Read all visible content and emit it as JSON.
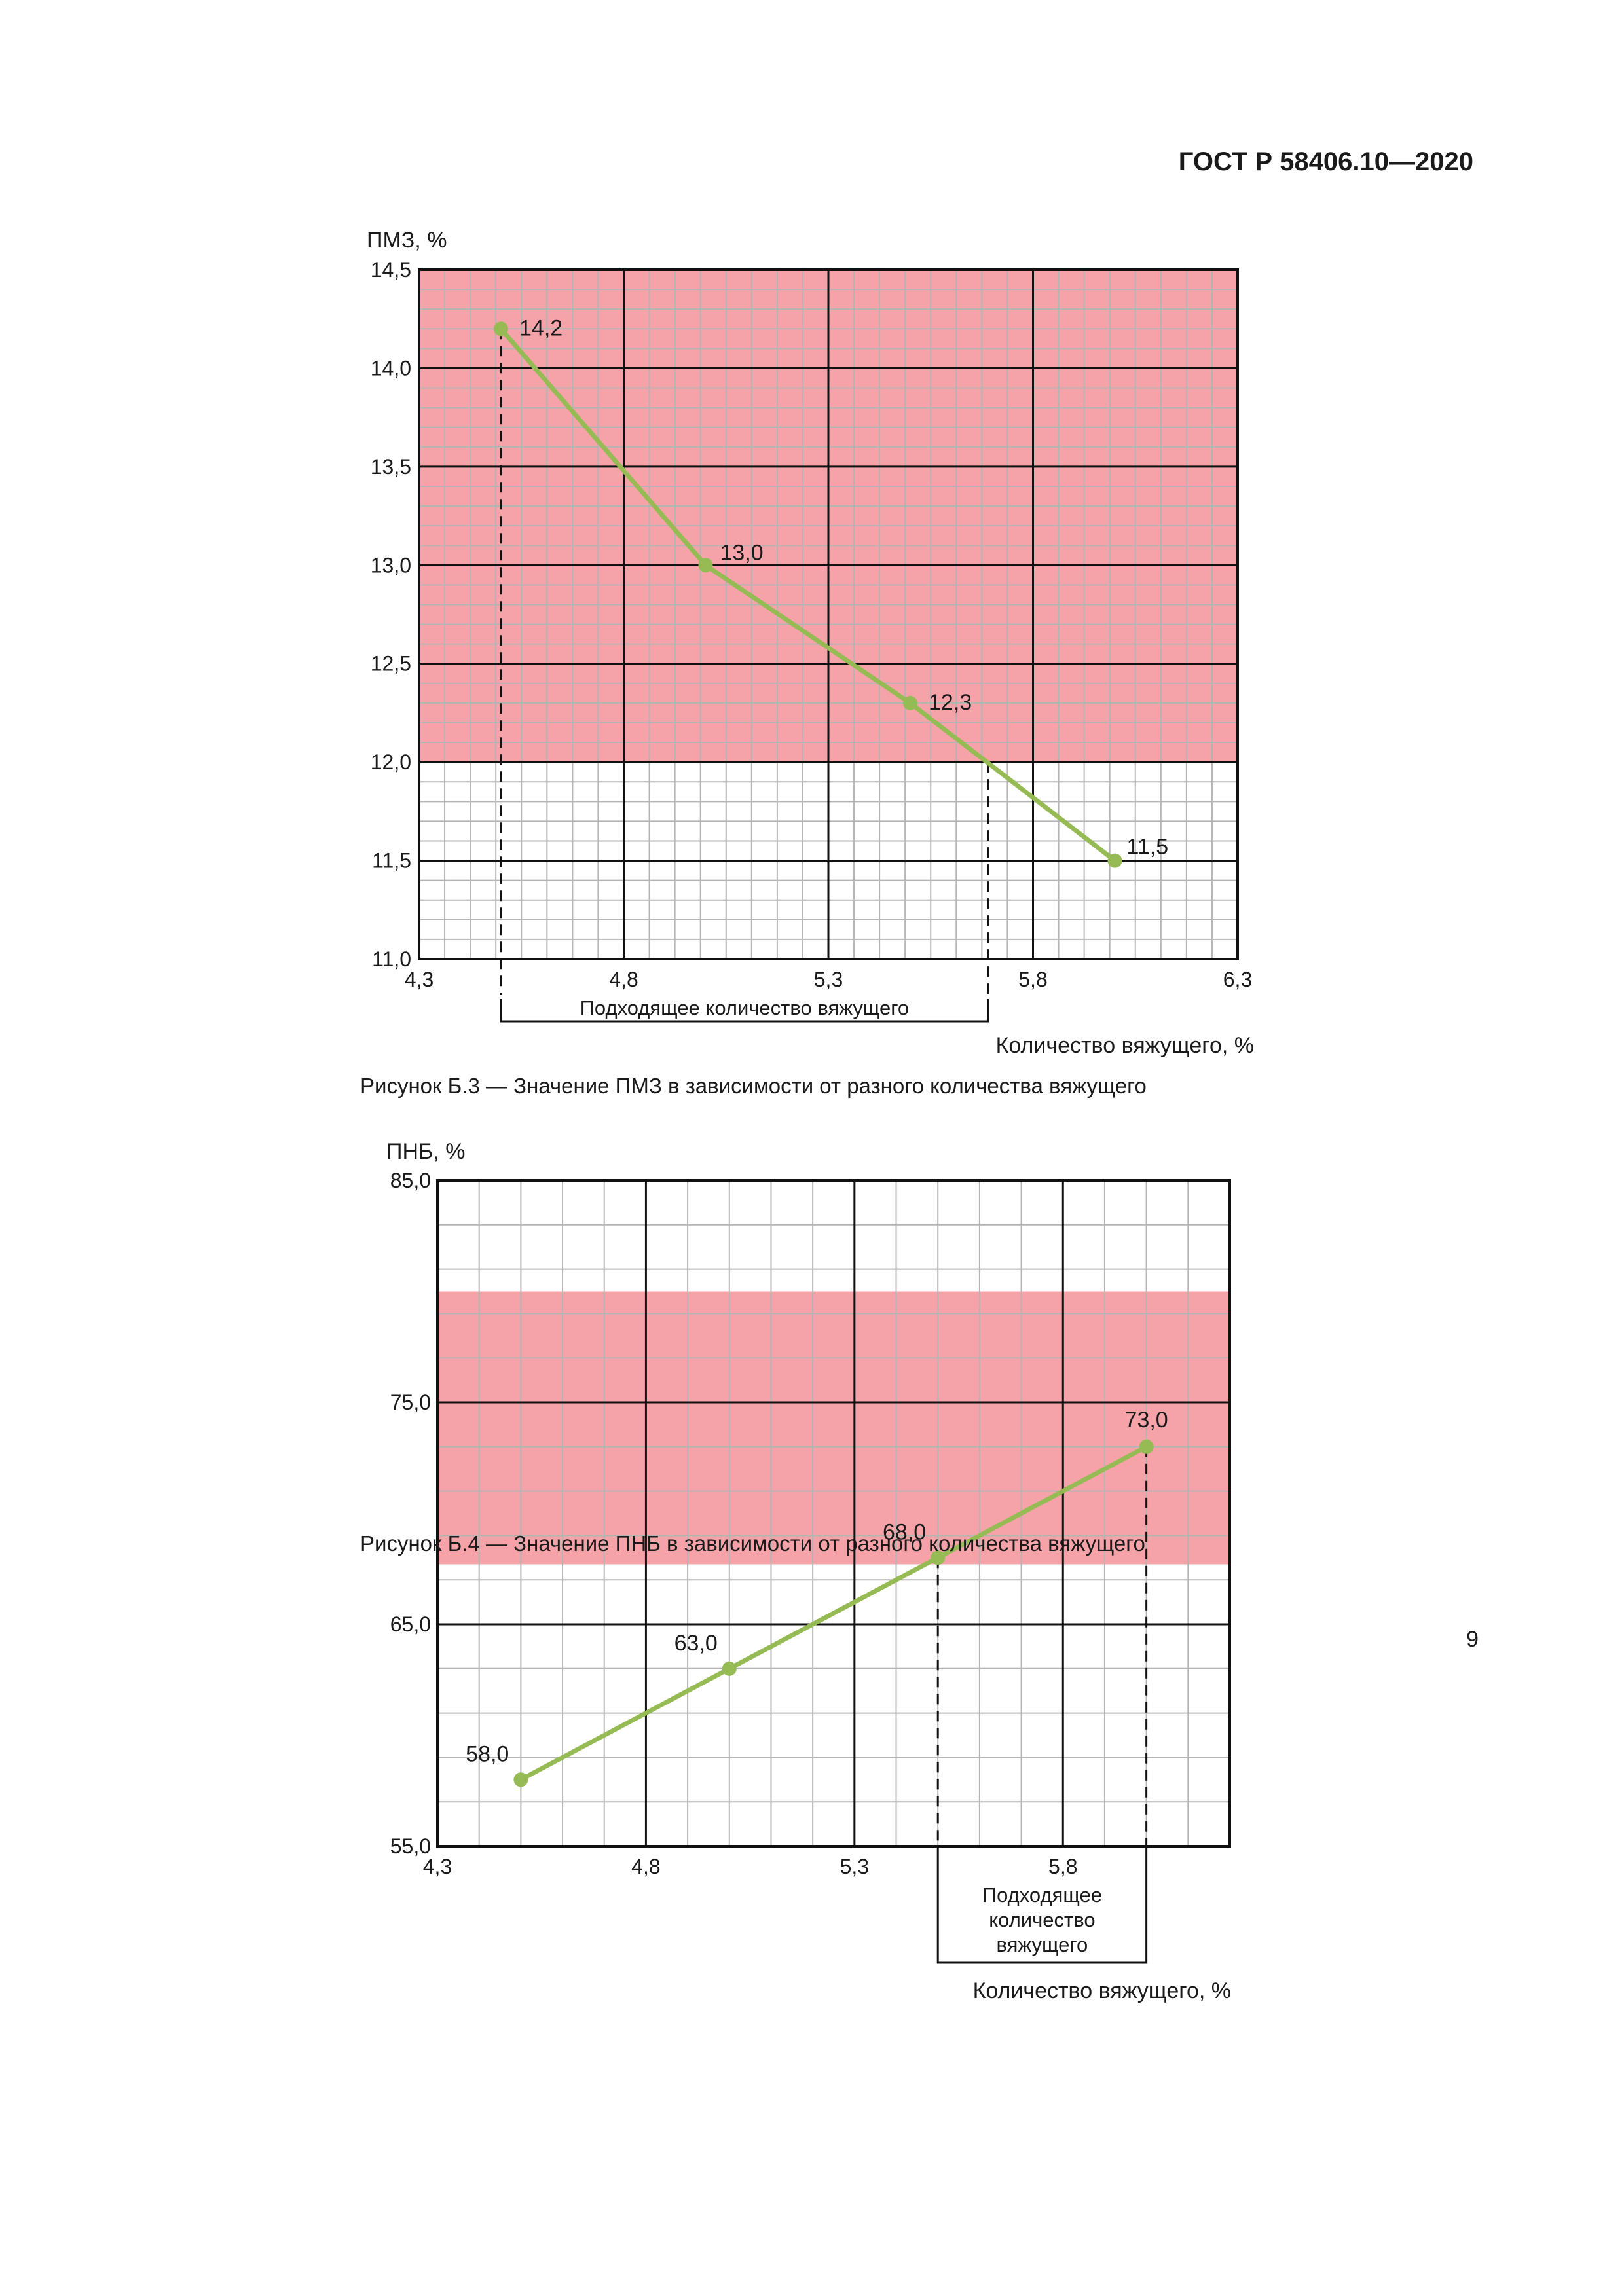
{
  "header": {
    "doc_number": "ГОСТ Р 58406.10—2020"
  },
  "page_number": "9",
  "colors": {
    "zone": "#f5a3a8",
    "line": "#96bb55",
    "grid": "#b4b4b4",
    "major": "#111111"
  },
  "chart_data": [
    {
      "type": "line",
      "ylabel": "ПМЗ, %",
      "xlabel": "Количество вяжущего, %",
      "caption": "Рисунок Б.3 — Значение ПМЗ в зависимости от разного количества вяжущего",
      "xlim": [
        4.3,
        6.3
      ],
      "ylim": [
        11.0,
        14.5
      ],
      "x_ticks": [
        "4,3",
        "4,8",
        "5,3",
        "5,8",
        "6,3"
      ],
      "y_ticks": [
        "11,0",
        "11,5",
        "12,0",
        "12,5",
        "13,0",
        "13,5",
        "14,0",
        "14,5"
      ],
      "series": [
        {
          "name": "ПМЗ",
          "x": [
            4.5,
            5.0,
            5.5,
            6.0
          ],
          "y": [
            14.2,
            13.0,
            12.3,
            11.5
          ],
          "labels": [
            "14,2",
            "13,0",
            "12,3",
            "11,5"
          ]
        }
      ],
      "shaded_band": {
        "y_from": 12.0,
        "y_to": 14.5
      },
      "suitable_range": {
        "label": "Подходящее количество вяжущего",
        "x_from": 4.5,
        "x_to": 5.69
      }
    },
    {
      "type": "line",
      "ylabel": "ПНБ, %",
      "xlabel": "Количество вяжущего, %",
      "caption": "Рисунок Б.4 — Значение ПНБ в зависимости от разного количества вяжущего",
      "xlim": [
        4.3,
        6.2
      ],
      "ylim": [
        55.0,
        85.0
      ],
      "x_ticks": [
        "4,3",
        "4,8",
        "5,3",
        "5,8"
      ],
      "y_ticks": [
        "55,0",
        "65,0",
        "75,0",
        "85,0"
      ],
      "series": [
        {
          "name": "ПНБ",
          "x": [
            4.5,
            5.0,
            5.5,
            6.0
          ],
          "y": [
            58.0,
            63.0,
            68.0,
            73.0
          ],
          "labels": [
            "58,0",
            "63,0",
            "68,0",
            "73,0"
          ]
        }
      ],
      "shaded_band": {
        "y_from": 67.7,
        "y_to": 80.0
      },
      "suitable_range": {
        "label_lines": [
          "Подходящее",
          "количество",
          "вяжущего"
        ],
        "x_from": 5.5,
        "x_to": 6.0
      }
    }
  ]
}
